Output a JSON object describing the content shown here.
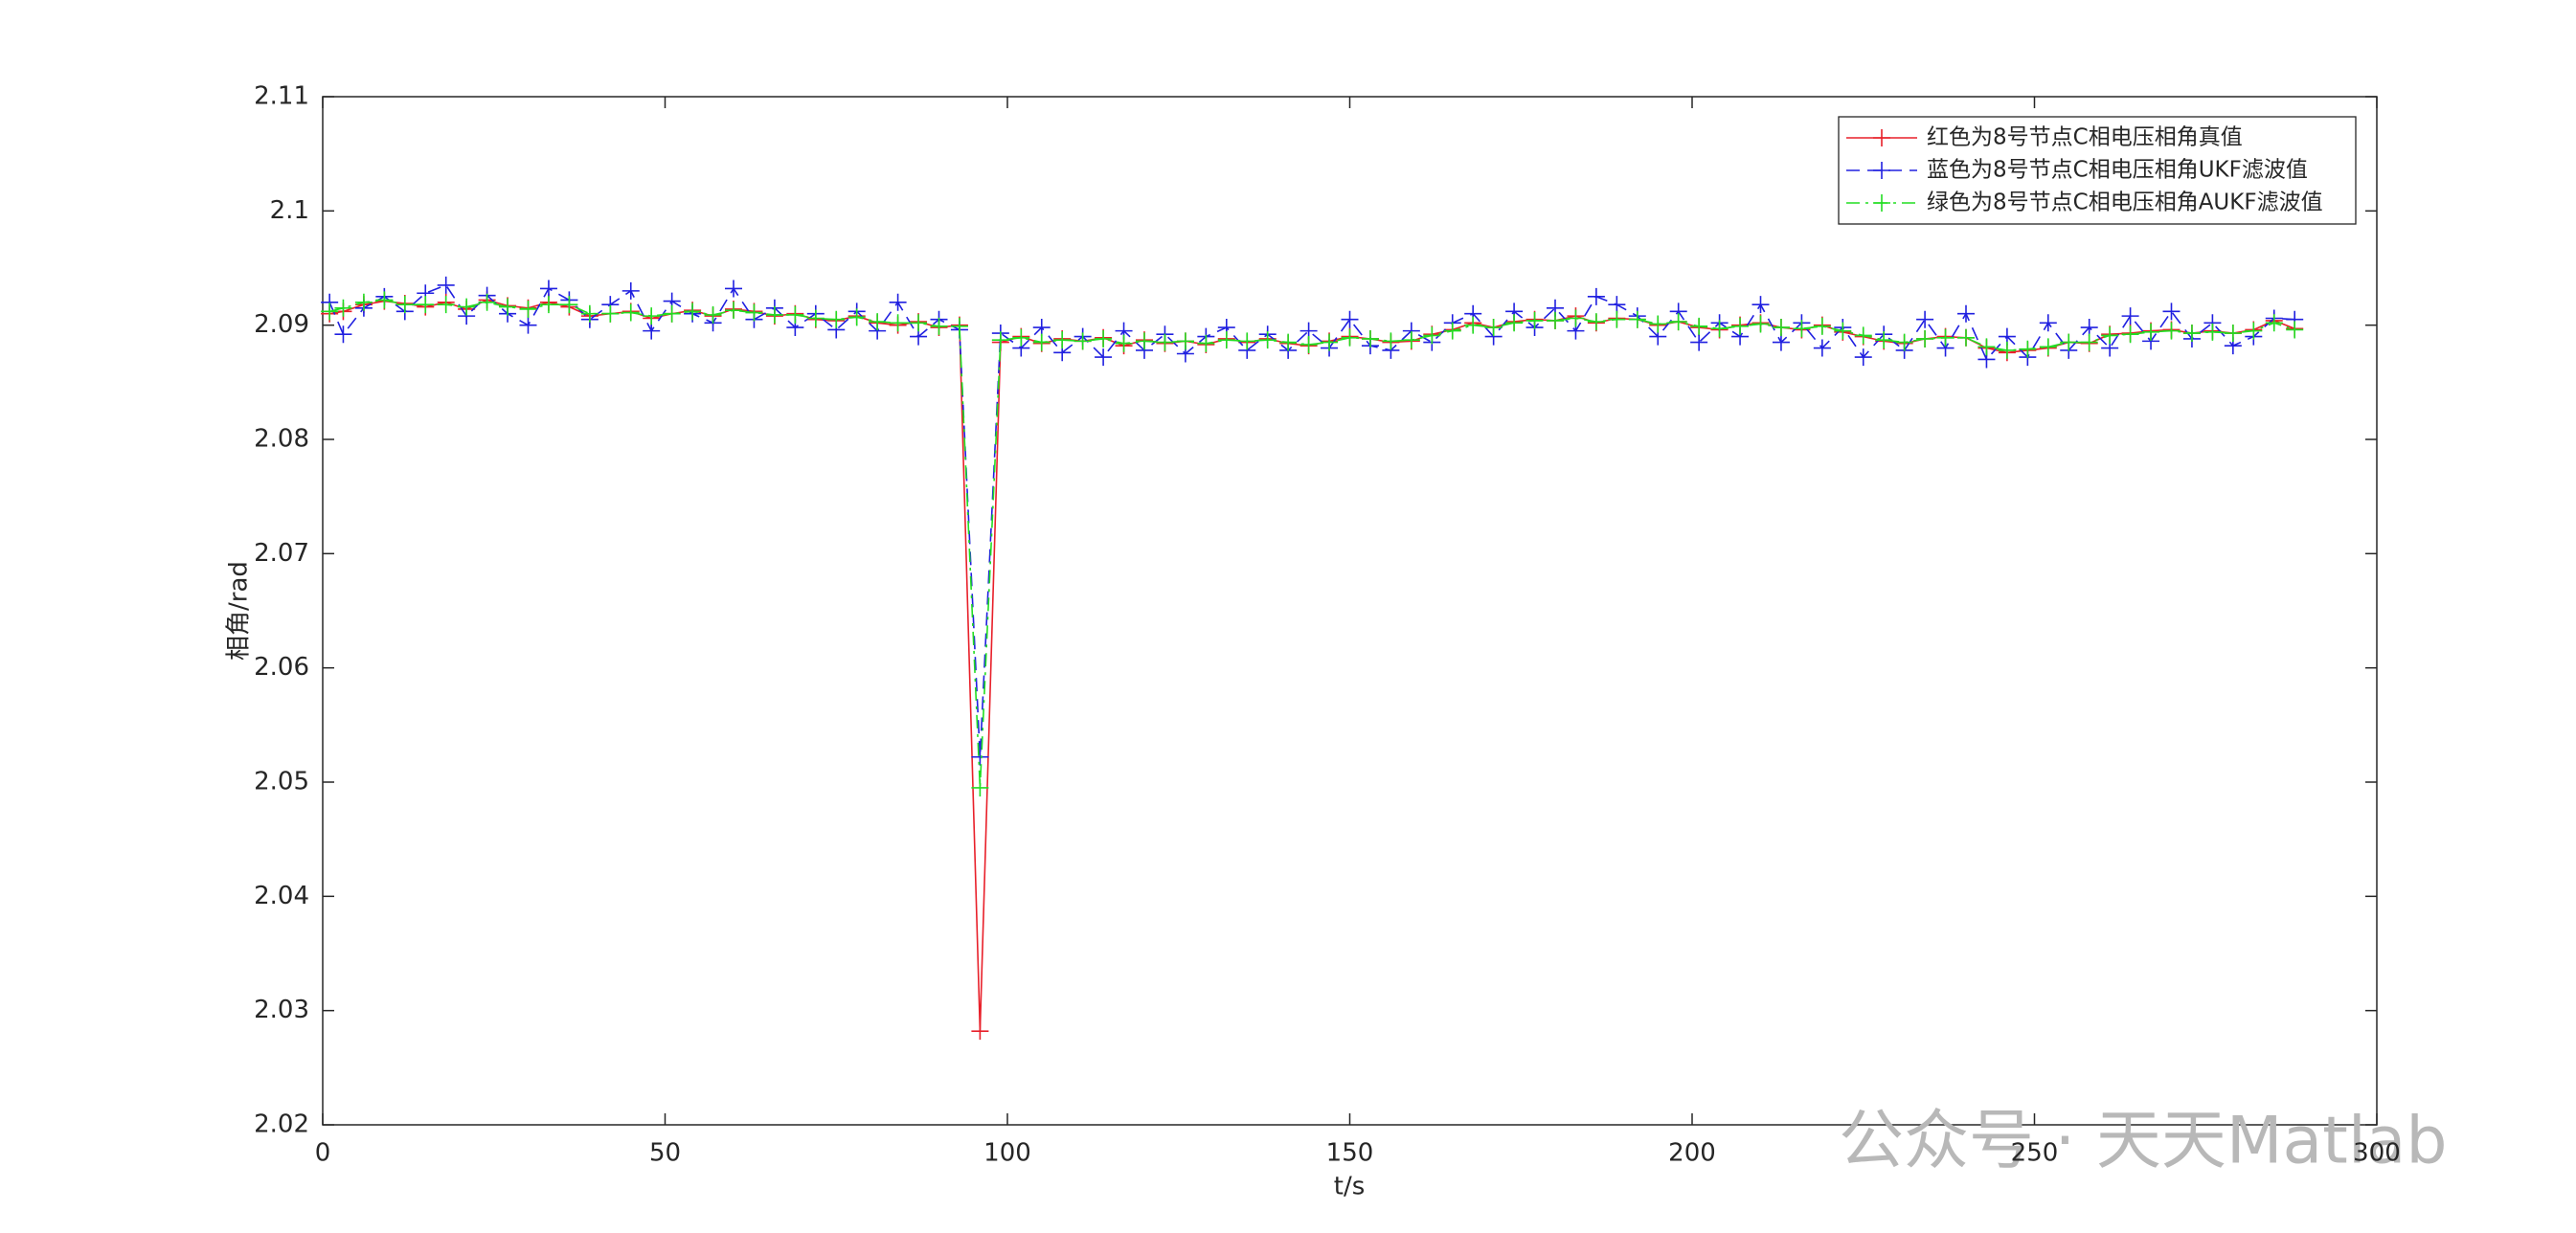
{
  "chart_data": {
    "type": "line",
    "xlabel": "t/s",
    "ylabel": "相角/rad",
    "watermark": "公众号 · 天天Matlab",
    "legend": "upper right",
    "markers": true,
    "xlim": [
      0,
      300
    ],
    "xticks": [
      0,
      50,
      100,
      150,
      200,
      250,
      300
    ],
    "ylim": [
      2.02,
      2.11
    ],
    "yticks": [
      2.02,
      2.03,
      2.04,
      2.05,
      2.06,
      2.07,
      2.08,
      2.09,
      2.1,
      2.11
    ],
    "x": [
      1,
      3,
      6,
      9,
      12,
      15,
      18,
      21,
      24,
      27,
      30,
      33,
      36,
      39,
      42,
      45,
      48,
      51,
      54,
      57,
      60,
      63,
      66,
      69,
      72,
      75,
      78,
      81,
      84,
      87,
      90,
      93,
      96,
      99,
      102,
      105,
      108,
      111,
      114,
      117,
      120,
      123,
      126,
      129,
      132,
      135,
      138,
      141,
      144,
      147,
      150,
      153,
      156,
      159,
      162,
      165,
      168,
      171,
      174,
      177,
      180,
      183,
      186,
      189,
      192,
      195,
      198,
      201,
      204,
      207,
      210,
      213,
      216,
      219,
      222,
      225,
      228,
      231,
      234,
      237,
      240,
      243,
      246,
      249,
      252,
      255,
      258,
      261,
      264,
      267,
      270,
      273,
      276,
      279,
      282,
      285,
      288
    ],
    "series": [
      {
        "name": "红色为8号节点C相电压相角真值",
        "color": "#e8202a",
        "dash": "solid",
        "values": [
          2.091,
          2.0912,
          2.0918,
          2.0921,
          2.0919,
          2.0916,
          2.092,
          2.0914,
          2.0922,
          2.0917,
          2.0915,
          2.092,
          2.0916,
          2.0908,
          2.091,
          2.0912,
          2.0906,
          2.091,
          2.0913,
          2.0908,
          2.0914,
          2.0912,
          2.0908,
          2.091,
          2.0905,
          2.0904,
          2.0908,
          2.0902,
          2.09,
          2.0903,
          2.0898,
          2.09,
          2.0282,
          2.0885,
          2.089,
          2.0884,
          2.0888,
          2.0886,
          2.0889,
          2.0882,
          2.0887,
          2.0884,
          2.0886,
          2.0883,
          2.0888,
          2.0885,
          2.0888,
          2.0884,
          2.0882,
          2.0886,
          2.089,
          2.0888,
          2.0885,
          2.0886,
          2.0892,
          2.0896,
          2.0902,
          2.0898,
          2.0903,
          2.0905,
          2.0904,
          2.0908,
          2.0902,
          2.0906,
          2.0905,
          2.09,
          2.0903,
          2.0898,
          2.0896,
          2.09,
          2.0902,
          2.0898,
          2.0896,
          2.09,
          2.0894,
          2.089,
          2.0886,
          2.0884,
          2.0888,
          2.089,
          2.0889,
          2.088,
          2.0876,
          2.0878,
          2.088,
          2.0885,
          2.0884,
          2.0892,
          2.0893,
          2.0895,
          2.0896,
          2.0893,
          2.0895,
          2.0893,
          2.0896,
          2.0904,
          2.0897
        ]
      },
      {
        "name": "蓝色为8号节点C相电压相角UKF滤波值",
        "color": "#2020e0",
        "dash": "dashed",
        "values": [
          2.092,
          2.0892,
          2.0915,
          2.0925,
          2.0912,
          2.0928,
          2.0935,
          2.0908,
          2.0926,
          2.091,
          2.09,
          2.0932,
          2.0922,
          2.0905,
          2.0918,
          2.093,
          2.0895,
          2.0921,
          2.091,
          2.0902,
          2.0932,
          2.0905,
          2.0915,
          2.0898,
          2.091,
          2.0896,
          2.0912,
          2.0895,
          2.092,
          2.089,
          2.0905,
          2.0896,
          2.0522,
          2.0893,
          2.088,
          2.0898,
          2.0876,
          2.089,
          2.0872,
          2.0895,
          2.0878,
          2.0892,
          2.0875,
          2.089,
          2.0898,
          2.0878,
          2.0892,
          2.0878,
          2.0895,
          2.088,
          2.0905,
          2.0882,
          2.0878,
          2.0895,
          2.0885,
          2.0902,
          2.091,
          2.089,
          2.0912,
          2.0898,
          2.0915,
          2.0895,
          2.0925,
          2.0918,
          2.0908,
          2.089,
          2.0912,
          2.0885,
          2.0902,
          2.089,
          2.0918,
          2.0885,
          2.0902,
          2.088,
          2.0898,
          2.0872,
          2.0892,
          2.0878,
          2.0905,
          2.088,
          2.091,
          2.087,
          2.089,
          2.0872,
          2.0902,
          2.0878,
          2.0898,
          2.088,
          2.0908,
          2.0886,
          2.0912,
          2.0888,
          2.0902,
          2.0882,
          2.089,
          2.0906,
          2.0905
        ]
      },
      {
        "name": "绿色为8号节点C相电压相角AUKF滤波值",
        "color": "#22dd22",
        "dash": "dashdot",
        "values": [
          2.0912,
          2.0915,
          2.092,
          2.0922,
          2.0918,
          2.0918,
          2.0918,
          2.0916,
          2.092,
          2.0916,
          2.0914,
          2.0918,
          2.0918,
          2.091,
          2.091,
          2.0911,
          2.0908,
          2.091,
          2.0912,
          2.0909,
          2.0913,
          2.0911,
          2.0909,
          2.0909,
          2.0906,
          2.0905,
          2.0907,
          2.0903,
          2.0902,
          2.0902,
          2.0899,
          2.0899,
          2.0495,
          2.0887,
          2.0889,
          2.0885,
          2.0887,
          2.0886,
          2.0888,
          2.0884,
          2.0886,
          2.0885,
          2.0886,
          2.0884,
          2.0887,
          2.0886,
          2.0887,
          2.0885,
          2.0883,
          2.0885,
          2.0889,
          2.0888,
          2.0886,
          2.0887,
          2.0891,
          2.0895,
          2.09,
          2.0898,
          2.0902,
          2.0904,
          2.0904,
          2.0906,
          2.0903,
          2.0905,
          2.0905,
          2.0901,
          2.0903,
          2.0899,
          2.0897,
          2.0899,
          2.0901,
          2.0898,
          2.0897,
          2.0899,
          2.0895,
          2.0891,
          2.0887,
          2.0885,
          2.0888,
          2.0889,
          2.0889,
          2.0881,
          2.0878,
          2.0879,
          2.0881,
          2.0885,
          2.0885,
          2.0891,
          2.0892,
          2.0894,
          2.0895,
          2.0893,
          2.0894,
          2.0893,
          2.0895,
          2.0902,
          2.0896
        ]
      }
    ]
  }
}
